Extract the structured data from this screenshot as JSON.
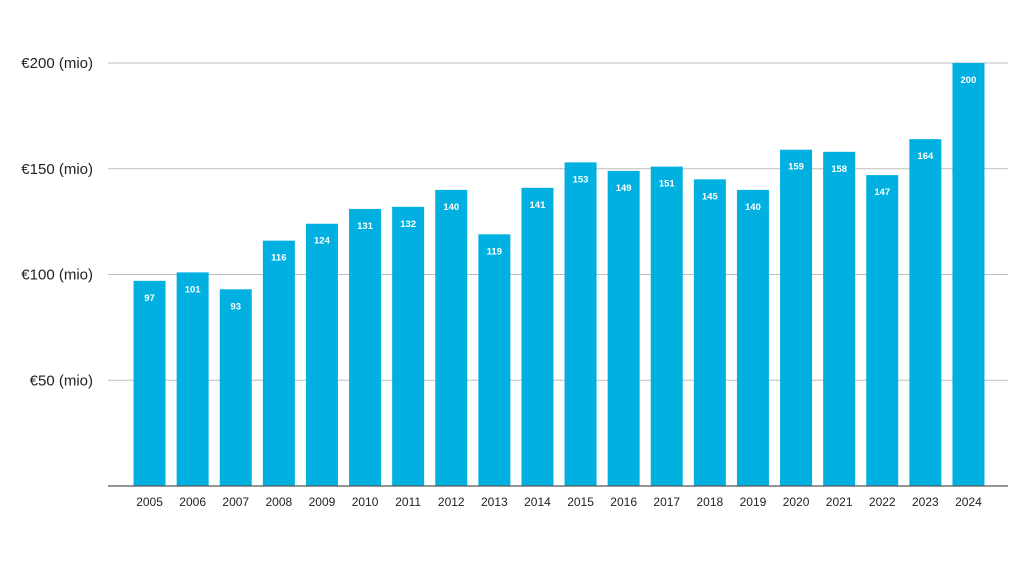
{
  "chart_data": {
    "type": "bar",
    "title": "",
    "xlabel": "",
    "ylabel": "",
    "categories": [
      "2005",
      "2006",
      "2007",
      "2008",
      "2009",
      "2010",
      "2011",
      "2012",
      "2013",
      "2014",
      "2015",
      "2016",
      "2017",
      "2018",
      "2019",
      "2020",
      "2021",
      "2022",
      "2023",
      "2024"
    ],
    "values": [
      97,
      101,
      93,
      116,
      124,
      131,
      132,
      140,
      119,
      141,
      153,
      149,
      151,
      145,
      140,
      159,
      158,
      147,
      164,
      200
    ],
    "ylim": [
      0,
      200
    ],
    "yticks": [
      {
        "value": 50,
        "label": "€50 (mio)"
      },
      {
        "value": 100,
        "label": "€100 (mio)"
      },
      {
        "value": 150,
        "label": "€150 (mio)"
      },
      {
        "value": 200,
        "label": "€200 (mio)"
      }
    ],
    "grid": true,
    "data_labels": true,
    "bar_color": "#00b0e0",
    "label_color": "#ffffff"
  }
}
